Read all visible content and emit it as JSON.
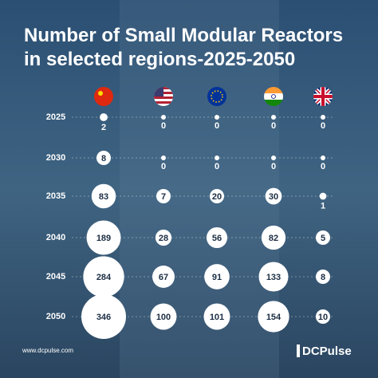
{
  "chart_data": {
    "type": "bubble-grid",
    "title": "Number of Small Modular Reactors in selected regions-2025-2050",
    "categories": [
      "2025",
      "2030",
      "2035",
      "2040",
      "2045",
      "2050"
    ],
    "series": [
      {
        "values": [
          2,
          8,
          83,
          189,
          284,
          346
        ]
      },
      {
        "values": [
          0,
          0,
          7,
          28,
          67,
          100
        ]
      },
      {
        "values": [
          0,
          0,
          20,
          56,
          91,
          101
        ]
      },
      {
        "values": [
          0,
          0,
          30,
          82,
          133,
          154
        ]
      },
      {
        "values": [
          0,
          0,
          1,
          5,
          8,
          10
        ]
      }
    ],
    "color": "#ffffff",
    "source": "www.dcpulse.com",
    "brand": "DCPulse"
  }
}
